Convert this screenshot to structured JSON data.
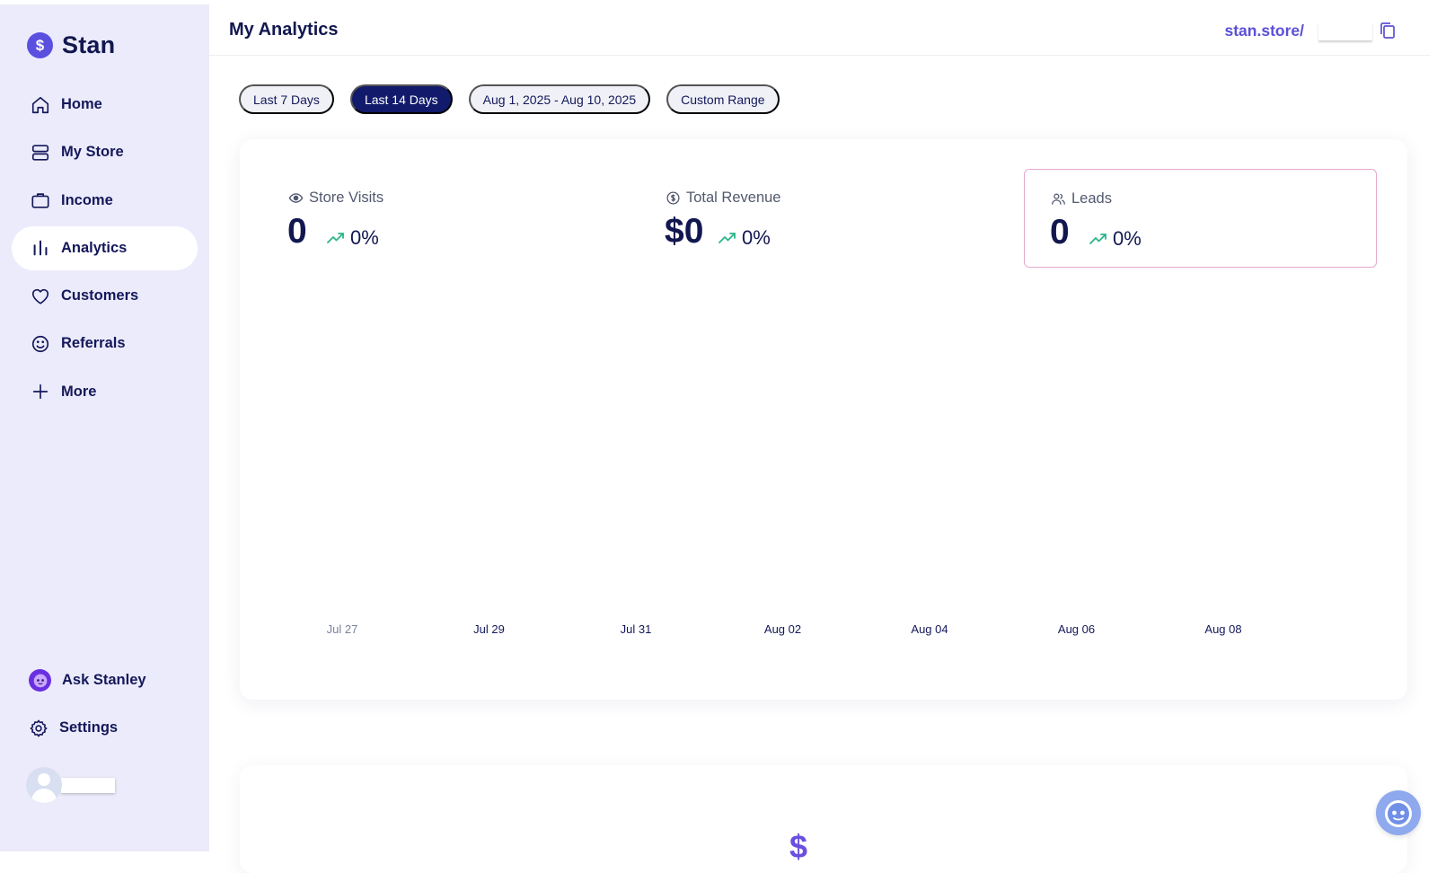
{
  "brand": {
    "logo_glyph": "$",
    "name": "Stan"
  },
  "sidebar": {
    "items": [
      {
        "label": "Home",
        "icon": "home-icon"
      },
      {
        "label": "My Store",
        "icon": "store-icon"
      },
      {
        "label": "Income",
        "icon": "briefcase-icon"
      },
      {
        "label": "Analytics",
        "icon": "bar-chart-icon",
        "active": true
      },
      {
        "label": "Customers",
        "icon": "heart-icon"
      },
      {
        "label": "Referrals",
        "icon": "smile-icon"
      },
      {
        "label": "More",
        "icon": "plus-icon"
      }
    ],
    "bottom": [
      {
        "label": "Ask Stanley",
        "icon": "robot-icon"
      },
      {
        "label": "Settings",
        "icon": "gear-icon"
      }
    ]
  },
  "header": {
    "title": "My Analytics",
    "store_link": "stan.store/"
  },
  "filters": [
    {
      "label": "Last 7 Days"
    },
    {
      "label": "Last 14 Days",
      "active": true
    },
    {
      "label": "Aug 1, 2025 - Aug 10, 2025"
    },
    {
      "label": "Custom Range"
    }
  ],
  "stats": [
    {
      "label": "Store Visits",
      "value": "0",
      "change": "0%",
      "icon": "eye-icon"
    },
    {
      "label": "Total Revenue",
      "value": "$0",
      "change": "0%",
      "icon": "dollar-circle-icon"
    },
    {
      "label": "Leads",
      "value": "0",
      "change": "0%",
      "icon": "users-icon",
      "selected": true
    }
  ],
  "chart_data": {
    "type": "line",
    "x": [
      "Jul 27",
      "Jul 29",
      "Jul 31",
      "Aug 02",
      "Aug 04",
      "Aug 06",
      "Aug 08"
    ],
    "series": [],
    "grid": false
  },
  "colors": {
    "accent": "#5b4fe0",
    "sidebar_bg": "#ecebfb",
    "active_chip": "#111a6b",
    "trend_up": "#2bb58a",
    "selected_border": "#e6a9cf"
  }
}
